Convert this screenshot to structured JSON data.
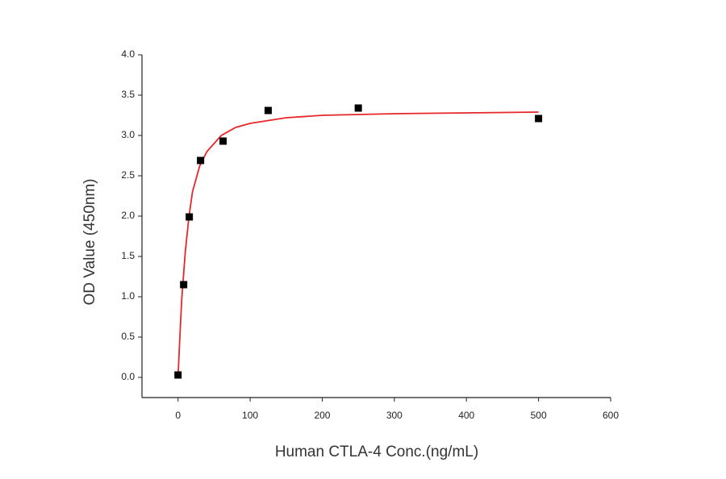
{
  "chart_data": {
    "type": "scatter",
    "xlabel": "Human CTLA-4 Conc.(ng/mL)",
    "ylabel": "OD Value (450nm)",
    "x": [
      0,
      7.8,
      15.6,
      31.25,
      62.5,
      125,
      250,
      500
    ],
    "values": [
      0.03,
      1.15,
      1.99,
      2.69,
      2.93,
      3.31,
      3.34,
      3.21
    ],
    "color": "#000000",
    "fit": {
      "x": [
        0,
        2,
        5,
        10,
        15,
        20,
        30,
        40,
        60,
        80,
        100,
        150,
        200,
        300,
        400,
        500
      ],
      "values": [
        0,
        0.4,
        0.95,
        1.55,
        1.98,
        2.3,
        2.62,
        2.8,
        3.0,
        3.1,
        3.15,
        3.22,
        3.25,
        3.27,
        3.28,
        3.29
      ],
      "color": "#e8262a"
    },
    "xlim": [
      -50,
      600
    ],
    "xticks": [
      0,
      100,
      200,
      300,
      400,
      500,
      600
    ],
    "ylim": [
      -0.25,
      4.0
    ],
    "yticks": [
      {
        "value": 0,
        "label": "0.0"
      },
      {
        "value": 0.5,
        "label": "0.5"
      },
      {
        "value": 1,
        "label": "1.0"
      },
      {
        "value": 1.5,
        "label": "1.5"
      },
      {
        "value": 2,
        "label": "2.0"
      },
      {
        "value": 2.5,
        "label": "2.5"
      },
      {
        "value": 3,
        "label": "3.0"
      },
      {
        "value": 3.5,
        "label": "3.5"
      },
      {
        "value": 4,
        "label": "4.0"
      }
    ]
  }
}
